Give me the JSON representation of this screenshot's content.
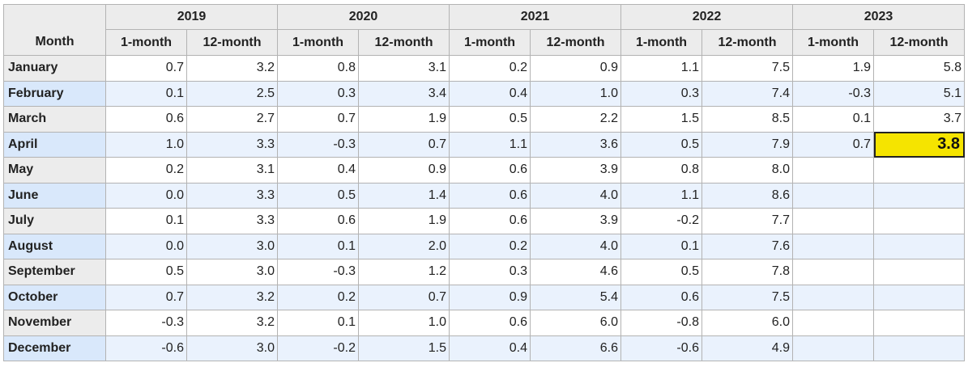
{
  "table": {
    "month_header": "Month",
    "years": [
      "2019",
      "2020",
      "2021",
      "2022",
      "2023"
    ],
    "sub_headers": [
      "1-month",
      "12-month"
    ],
    "highlight_color": "#f5e400",
    "rows": [
      {
        "month": "January",
        "values": [
          "0.7",
          "3.2",
          "0.8",
          "3.1",
          "0.2",
          "0.9",
          "1.1",
          "7.5",
          "1.9",
          "5.8"
        ]
      },
      {
        "month": "February",
        "values": [
          "0.1",
          "2.5",
          "0.3",
          "3.4",
          "0.4",
          "1.0",
          "0.3",
          "7.4",
          "-0.3",
          "5.1"
        ]
      },
      {
        "month": "March",
        "values": [
          "0.6",
          "2.7",
          "0.7",
          "1.9",
          "0.5",
          "2.2",
          "1.5",
          "8.5",
          "0.1",
          "3.7"
        ]
      },
      {
        "month": "April",
        "values": [
          "1.0",
          "3.3",
          "-0.3",
          "0.7",
          "1.1",
          "3.6",
          "0.5",
          "7.9",
          "0.7",
          "3.8"
        ],
        "highlight_index": 9
      },
      {
        "month": "May",
        "values": [
          "0.2",
          "3.1",
          "0.4",
          "0.9",
          "0.6",
          "3.9",
          "0.8",
          "8.0",
          "",
          ""
        ]
      },
      {
        "month": "June",
        "values": [
          "0.0",
          "3.3",
          "0.5",
          "1.4",
          "0.6",
          "4.0",
          "1.1",
          "8.6",
          "",
          ""
        ]
      },
      {
        "month": "July",
        "values": [
          "0.1",
          "3.3",
          "0.6",
          "1.9",
          "0.6",
          "3.9",
          "-0.2",
          "7.7",
          "",
          ""
        ]
      },
      {
        "month": "August",
        "values": [
          "0.0",
          "3.0",
          "0.1",
          "2.0",
          "0.2",
          "4.0",
          "0.1",
          "7.6",
          "",
          ""
        ]
      },
      {
        "month": "September",
        "values": [
          "0.5",
          "3.0",
          "-0.3",
          "1.2",
          "0.3",
          "4.6",
          "0.5",
          "7.8",
          "",
          ""
        ]
      },
      {
        "month": "October",
        "values": [
          "0.7",
          "3.2",
          "0.2",
          "0.7",
          "0.9",
          "5.4",
          "0.6",
          "7.5",
          "",
          ""
        ]
      },
      {
        "month": "November",
        "values": [
          "-0.3",
          "3.2",
          "0.1",
          "1.0",
          "0.6",
          "6.0",
          "-0.8",
          "6.0",
          "",
          ""
        ]
      },
      {
        "month": "December",
        "values": [
          "-0.6",
          "3.0",
          "-0.2",
          "1.5",
          "0.4",
          "6.6",
          "-0.6",
          "4.9",
          "",
          ""
        ]
      }
    ]
  }
}
